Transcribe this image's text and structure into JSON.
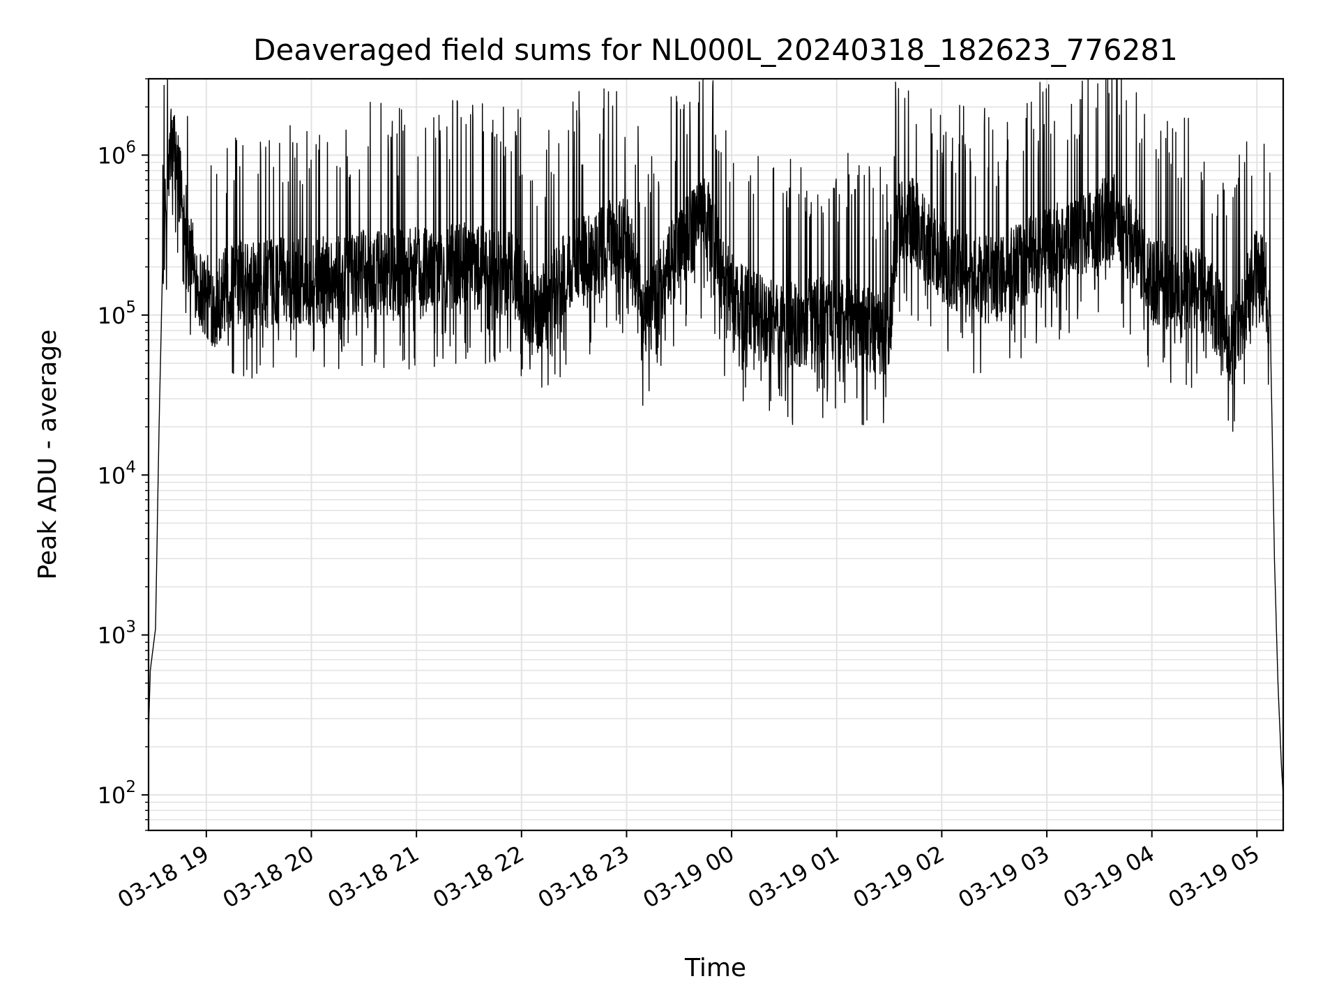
{
  "chart_data": {
    "type": "line",
    "title": "Deaveraged field sums for NL000L_20240318_182623_776281",
    "xlabel": "Time",
    "ylabel": "Peak ADU - average",
    "y_scale": "log",
    "ylim": [
      60,
      3000000
    ],
    "xlim": [
      "2024-03-18 18:27",
      "2024-03-19 05:15"
    ],
    "grid": "major and minor",
    "line_color": "#000000",
    "x_tick_labels": [
      "03-18 19",
      "03-18 20",
      "03-18 21",
      "03-18 22",
      "03-18 23",
      "03-19 00",
      "03-19 01",
      "03-19 02",
      "03-19 03",
      "03-19 04",
      "03-19 05"
    ],
    "y_tick_labels": [
      {
        "value": 100,
        "base": "10",
        "exp": "2"
      },
      {
        "value": 1000,
        "base": "10",
        "exp": "3"
      },
      {
        "value": 10000,
        "base": "10",
        "exp": "4"
      },
      {
        "value": 100000,
        "base": "10",
        "exp": "5"
      },
      {
        "value": 1000000,
        "base": "10",
        "exp": "6"
      }
    ],
    "series": [
      {
        "x": [
          "2024-03-18 18:27",
          "2024-03-18 18:28",
          "2024-03-18 18:31",
          "2024-03-18 18:33",
          "2024-03-18 18:35",
          "2024-03-18 18:38",
          "2024-03-18 18:40",
          "2024-03-18 18:43",
          "2024-03-18 18:45",
          "2024-03-18 18:48",
          "2024-03-18 18:50",
          "2024-03-18 18:53",
          "2024-03-18 18:56",
          "2024-03-18 19:00",
          "2024-03-18 19:05",
          "2024-03-18 19:10",
          "2024-03-18 19:20",
          "2024-03-18 19:30",
          "2024-03-18 19:45",
          "2024-03-18 20:00",
          "2024-03-18 20:30",
          "2024-03-18 21:00",
          "2024-03-18 21:30",
          "2024-03-18 22:00",
          "2024-03-18 22:05",
          "2024-03-18 22:30",
          "2024-03-18 23:00",
          "2024-03-18 23:10",
          "2024-03-18 23:30",
          "2024-03-18 23:45",
          "2024-03-19 00:00",
          "2024-03-19 00:15",
          "2024-03-19 00:30",
          "2024-03-19 01:00",
          "2024-03-19 01:30",
          "2024-03-19 01:35",
          "2024-03-19 01:45",
          "2024-03-19 02:00",
          "2024-03-19 02:30",
          "2024-03-19 03:00",
          "2024-03-19 03:30",
          "2024-03-19 03:40",
          "2024-03-19 04:00",
          "2024-03-19 04:30",
          "2024-03-19 04:45",
          "2024-03-19 05:00",
          "2024-03-19 05:05",
          "2024-03-19 05:08",
          "2024-03-19 05:10",
          "2024-03-19 05:12",
          "2024-03-19 05:14",
          "2024-03-19 05:15"
        ],
        "values": [
          250,
          600,
          1100,
          20000,
          200000,
          700000,
          1100000,
          900000,
          600000,
          400000,
          250000,
          180000,
          140000,
          120000,
          110000,
          130000,
          150000,
          140000,
          160000,
          150000,
          170000,
          180000,
          190000,
          160000,
          90000,
          200000,
          300000,
          80000,
          250000,
          400000,
          120000,
          90000,
          80000,
          90000,
          70000,
          400000,
          350000,
          200000,
          150000,
          250000,
          350000,
          400000,
          150000,
          130000,
          60000,
          180000,
          150000,
          50000,
          3000,
          500,
          150,
          100
        ]
      }
    ]
  }
}
